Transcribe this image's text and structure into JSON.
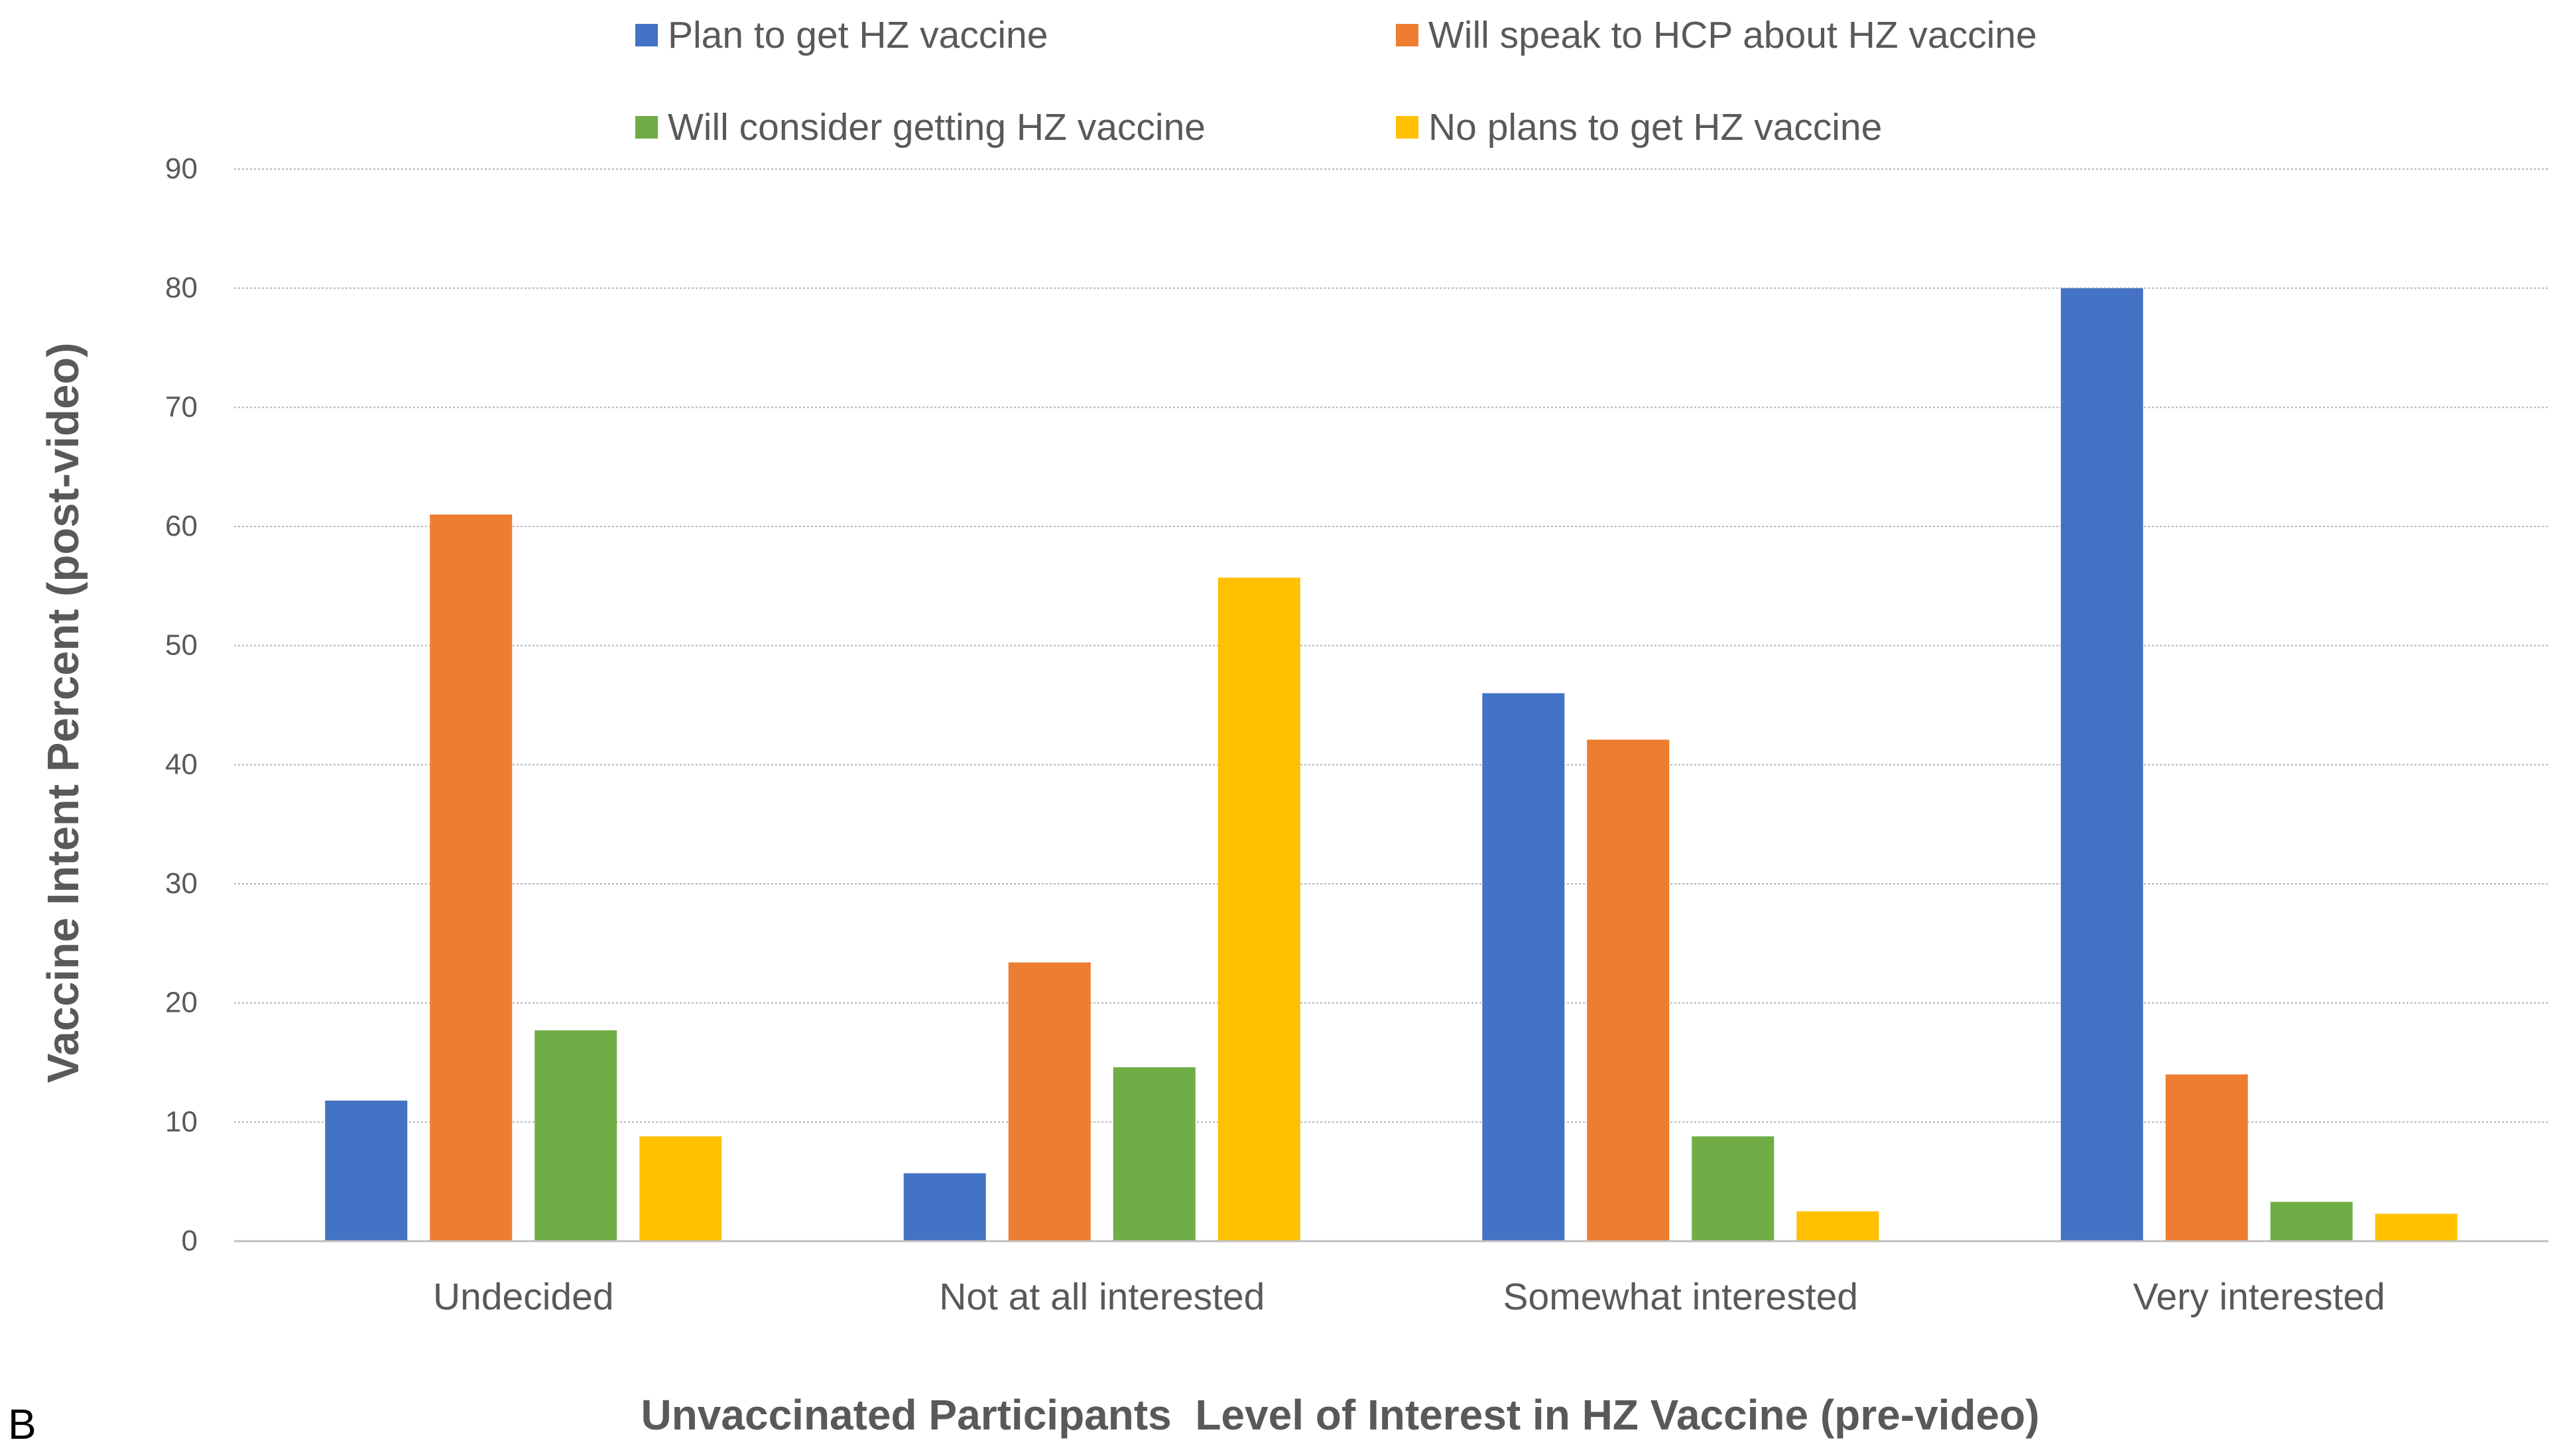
{
  "panel_label": "B",
  "chart_data": {
    "type": "bar",
    "title": "",
    "xlabel": "Unvaccinated Participants  Level of Interest in HZ Vaccine (pre-video)",
    "ylabel": "Vaccine Intent Percent (post-video)",
    "ylim": [
      0,
      90
    ],
    "yticks": [
      0,
      10,
      20,
      30,
      40,
      50,
      60,
      70,
      80,
      90
    ],
    "grid": true,
    "legend_position": "top",
    "categories": [
      "Undecided",
      "Not at all interested",
      "Somewhat interested",
      "Very interested"
    ],
    "series": [
      {
        "name": "Plan to get HZ vaccine",
        "color": "#4472C4",
        "values": [
          11.8,
          5.7,
          46.0,
          80.0
        ]
      },
      {
        "name": "Will speak to HCP about HZ vaccine",
        "color": "#ED7D31",
        "values": [
          61.0,
          23.4,
          42.1,
          14.0
        ]
      },
      {
        "name": "Will consider getting HZ vaccine",
        "color": "#70AD47",
        "values": [
          17.7,
          14.6,
          8.8,
          3.3
        ]
      },
      {
        "name": "No plans to get HZ vaccine",
        "color": "#FFC000",
        "values": [
          8.8,
          55.7,
          2.5,
          2.3
        ]
      }
    ]
  }
}
